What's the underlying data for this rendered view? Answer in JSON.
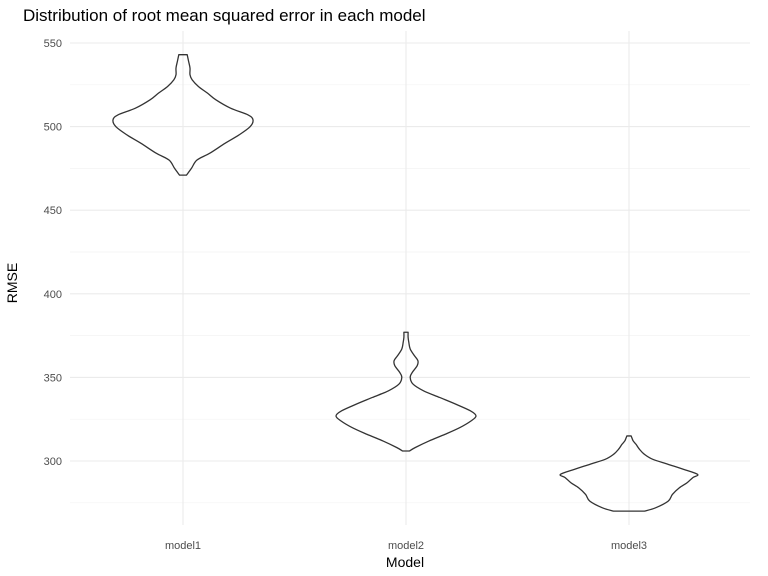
{
  "chart_data": {
    "type": "violin",
    "title": "Distribution of root mean squared error in each model",
    "xlabel": "Model",
    "ylabel": "RMSE",
    "categories": [
      "model1",
      "model2",
      "model3"
    ],
    "ylim": [
      262,
      560
    ],
    "yticks": [
      300,
      350,
      400,
      450,
      500,
      550
    ],
    "yticks_minor": [
      275,
      325,
      375,
      425,
      475,
      525
    ],
    "grid": true,
    "legend": "none",
    "violins": [
      {
        "category": "model1",
        "min": 471,
        "max": 543,
        "profile": [
          [
            471,
            0.05
          ],
          [
            475,
            0.12
          ],
          [
            480,
            0.2
          ],
          [
            484,
            0.38
          ],
          [
            490,
            0.6
          ],
          [
            495,
            0.8
          ],
          [
            500,
            0.96
          ],
          [
            504,
            1.0
          ],
          [
            507,
            0.93
          ],
          [
            511,
            0.68
          ],
          [
            516,
            0.47
          ],
          [
            520,
            0.35
          ],
          [
            524,
            0.22
          ],
          [
            528,
            0.13
          ],
          [
            531,
            0.1
          ],
          [
            535,
            0.1
          ],
          [
            539,
            0.08
          ],
          [
            543,
            0.06
          ]
        ]
      },
      {
        "category": "model2",
        "min": 306,
        "max": 377,
        "profile": [
          [
            306,
            0.05
          ],
          [
            308,
            0.13
          ],
          [
            312,
            0.33
          ],
          [
            316,
            0.56
          ],
          [
            320,
            0.77
          ],
          [
            324,
            0.93
          ],
          [
            327,
            1.0
          ],
          [
            330,
            0.92
          ],
          [
            334,
            0.71
          ],
          [
            338,
            0.48
          ],
          [
            342,
            0.25
          ],
          [
            346,
            0.1
          ],
          [
            350,
            0.06
          ],
          [
            353,
            0.09
          ],
          [
            357,
            0.16
          ],
          [
            360,
            0.17
          ],
          [
            363,
            0.12
          ],
          [
            367,
            0.06
          ],
          [
            371,
            0.04
          ],
          [
            374,
            0.03
          ],
          [
            377,
            0.03
          ]
        ]
      },
      {
        "category": "model3",
        "min": 270,
        "max": 315,
        "profile": [
          [
            270,
            0.22
          ],
          [
            272,
            0.38
          ],
          [
            276,
            0.56
          ],
          [
            280,
            0.62
          ],
          [
            284,
            0.72
          ],
          [
            287,
            0.83
          ],
          [
            290,
            0.91
          ],
          [
            292,
            0.98
          ],
          [
            295,
            0.78
          ],
          [
            298,
            0.56
          ],
          [
            301,
            0.34
          ],
          [
            304,
            0.22
          ],
          [
            307,
            0.15
          ],
          [
            310,
            0.1
          ],
          [
            312,
            0.06
          ],
          [
            314,
            0.04
          ],
          [
            315,
            0.03
          ]
        ]
      }
    ]
  }
}
